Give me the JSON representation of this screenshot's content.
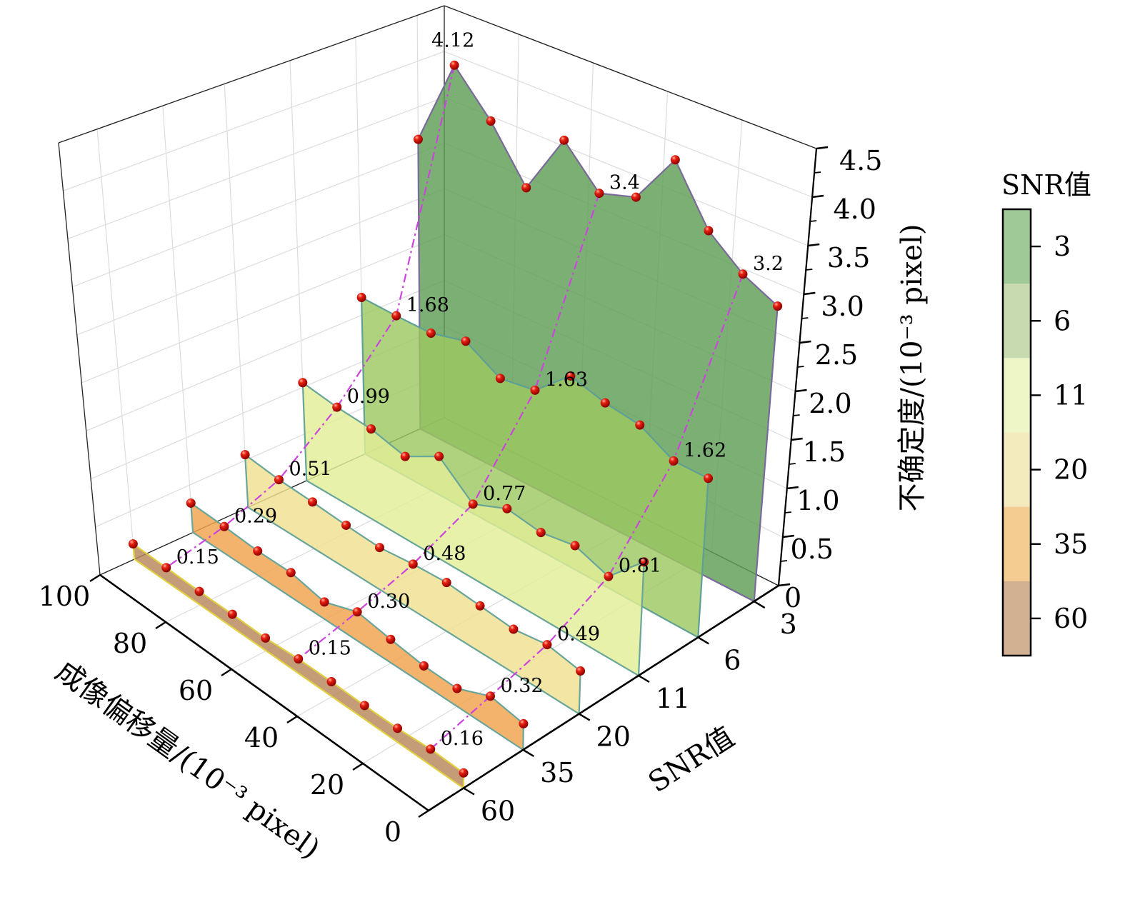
{
  "chart_data": {
    "type": "3d-waterfall",
    "title": "",
    "xlabel": "成像偏移量/(10⁻³ pixel)",
    "ylabel": "SNR值",
    "zlabel": "不确定度/(10⁻³ pixel)",
    "xlim": [
      0,
      100
    ],
    "zlim": [
      0,
      4.5
    ],
    "x_ticks": [
      "0",
      "20",
      "40",
      "60",
      "80",
      "100"
    ],
    "x_tick_values": [
      0,
      20,
      40,
      60,
      80,
      100
    ],
    "z_ticks": [
      "0",
      "0.5",
      "1.0",
      "1.5",
      "2.0",
      "2.5",
      "3.0",
      "3.5",
      "4.0",
      "4.5"
    ],
    "z_tick_values": [
      0,
      0.5,
      1,
      1.5,
      2,
      2.5,
      3,
      3.5,
      4,
      4.5
    ],
    "snr_ticks": [
      "3",
      "6",
      "11",
      "20",
      "35",
      "60"
    ],
    "grid": true,
    "x": [
      100,
      90,
      80,
      70,
      60,
      50,
      40,
      30,
      20,
      10,
      0
    ],
    "series": [
      {
        "name": "3",
        "values": [
          3.15,
          4.12,
          3.68,
          3.13,
          3.8,
          3.4,
          3.52,
          4.07,
          3.49,
          3.2,
          3.03
        ],
        "labels": [
          "4.12",
          "3.4",
          "3.2"
        ]
      },
      {
        "name": "6",
        "values": [
          1.69,
          1.68,
          1.68,
          1.78,
          1.57,
          1.63,
          1.96,
          1.86,
          1.81,
          1.62,
          1.62
        ],
        "labels": [
          "1.68",
          "1.63",
          "1.62"
        ]
      },
      {
        "name": "11",
        "values": [
          1.05,
          0.99,
          0.96,
          0.87,
          1.07,
          0.77,
          0.92,
          0.87,
          0.93,
          0.81,
          1.15
        ],
        "labels": [
          "0.99",
          "0.77",
          "0.81"
        ]
      },
      {
        "name": "20",
        "values": [
          0.56,
          0.51,
          0.49,
          0.46,
          0.44,
          0.48,
          0.5,
          0.47,
          0.44,
          0.49,
          0.43
        ],
        "labels": [
          "0.51",
          "0.48",
          "0.49"
        ]
      },
      {
        "name": "35",
        "values": [
          0.31,
          0.29,
          0.26,
          0.26,
          0.18,
          0.3,
          0.24,
          0.19,
          0.18,
          0.32,
          0.26
        ],
        "labels": [
          "0.29",
          "0.30",
          "0.32"
        ]
      },
      {
        "name": "60",
        "values": [
          0.16,
          0.15,
          0.14,
          0.14,
          0.13,
          0.15,
          0.15,
          0.14,
          0.14,
          0.16,
          0.15
        ],
        "labels": [
          "0.15",
          "0.15",
          "0.16"
        ]
      }
    ],
    "labeled_x": [
      90,
      50,
      10
    ],
    "colors": {
      "fills": [
        "#5e9e54",
        "#9cc860",
        "#e2ee96",
        "#f0e090",
        "#f0a24c",
        "#b8865a"
      ],
      "edges": [
        "#7a6a9a",
        "#5f9f95",
        "#6aa59a",
        "#6aa59a",
        "#6aa59a",
        "#e0d040"
      ],
      "marker": "#e01010",
      "guide": "#cc44dd"
    },
    "colorbar": {
      "title": "SNR值",
      "labels": [
        "3",
        "6",
        "11",
        "20",
        "35",
        "60"
      ],
      "colors": [
        "#9fca98",
        "#c8dab0",
        "#eef6c8",
        "#f3ebbe",
        "#f4cc92",
        "#d2b092"
      ]
    }
  }
}
